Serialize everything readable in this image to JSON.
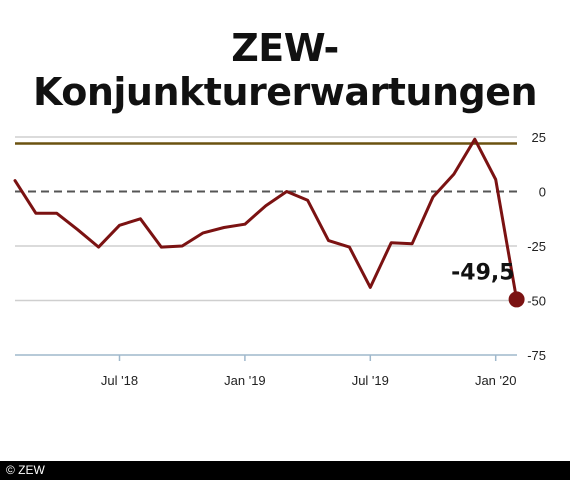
{
  "chart_data": {
    "type": "line",
    "title": "ZEW-Konjunkturerwartungen",
    "xlabel": "",
    "ylabel": "",
    "ylim": [
      -75,
      25
    ],
    "y_ticks": [
      25,
      0,
      -25,
      -50,
      -75
    ],
    "y_tick_labels": [
      "25",
      "0",
      "-25",
      "-50",
      "-75"
    ],
    "x_tick_labels": [
      "Jul '18",
      "Jan '19",
      "Jul '19",
      "Jan '20"
    ],
    "x_tick_months": [
      "2018-07",
      "2019-01",
      "2019-07",
      "2020-01"
    ],
    "x_range": [
      "2018-02",
      "2020-04"
    ],
    "grid": true,
    "series": [
      {
        "values": [
          {
            "month": "2018-02",
            "value": 5.0
          },
          {
            "month": "2018-03",
            "value": -10.0
          },
          {
            "month": "2018-04",
            "value": -10.0
          },
          {
            "month": "2018-05",
            "value": -17.5
          },
          {
            "month": "2018-06",
            "value": -25.5
          },
          {
            "month": "2018-07",
            "value": -15.5
          },
          {
            "month": "2018-08",
            "value": -12.5
          },
          {
            "month": "2018-09",
            "value": -25.5
          },
          {
            "month": "2018-10",
            "value": -25.0
          },
          {
            "month": "2018-11",
            "value": -19.0
          },
          {
            "month": "2018-12",
            "value": -16.5
          },
          {
            "month": "2019-01",
            "value": -15.0
          },
          {
            "month": "2019-02",
            "value": -6.5
          },
          {
            "month": "2019-03",
            "value": 0.0
          },
          {
            "month": "2019-04",
            "value": -4.0
          },
          {
            "month": "2019-05",
            "value": -22.5
          },
          {
            "month": "2019-06",
            "value": -25.5
          },
          {
            "month": "2019-07",
            "value": -44.0
          },
          {
            "month": "2019-08",
            "value": -23.5
          },
          {
            "month": "2019-09",
            "value": -24.0
          },
          {
            "month": "2019-10",
            "value": -2.5
          },
          {
            "month": "2019-11",
            "value": 8.0
          },
          {
            "month": "2019-12",
            "value": 24.0
          },
          {
            "month": "2020-01",
            "value": 5.5
          },
          {
            "month": "2020-02",
            "value": -49.5
          }
        ],
        "color": "#7b1212"
      }
    ],
    "reference_lines": [
      {
        "value": 22,
        "style": "solid",
        "color": "#6b5210"
      },
      {
        "value": 0,
        "style": "dashed",
        "color": "#555555"
      }
    ],
    "last_value_label": "-49,5",
    "colors": {
      "line": "#7b1212",
      "marker": "#7b1212",
      "grid": "#cfcfcf",
      "axis": "#9fb8cc"
    }
  },
  "footer": {
    "copyright": "© ZEW"
  }
}
